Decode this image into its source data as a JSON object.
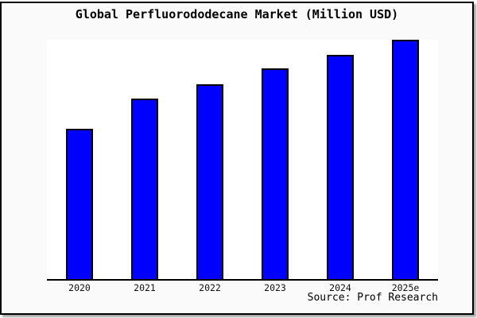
{
  "chart_data": {
    "type": "bar",
    "title": "Global Perfluorododecane Market (Million USD)",
    "categories": [
      "2020",
      "2021",
      "2022",
      "2023",
      "2024",
      "2025e"
    ],
    "values": [
      62.8,
      75.3,
      81.4,
      88.0,
      93.7,
      100.0
    ],
    "value_note": "relative bar heights in % of tallest (2025e) bar; no y-axis tick labels shown in figure",
    "xlabel": "",
    "ylabel": "",
    "ylim": [
      0,
      100
    ],
    "grid": false,
    "legend": false,
    "bar_color": "#0000ff",
    "bar_outline_color": "#000000",
    "plot_background": "#ffffff",
    "figure_background": "#fafafa",
    "frame_border_color": "#000000",
    "source_note": "Source: Prof Research"
  }
}
